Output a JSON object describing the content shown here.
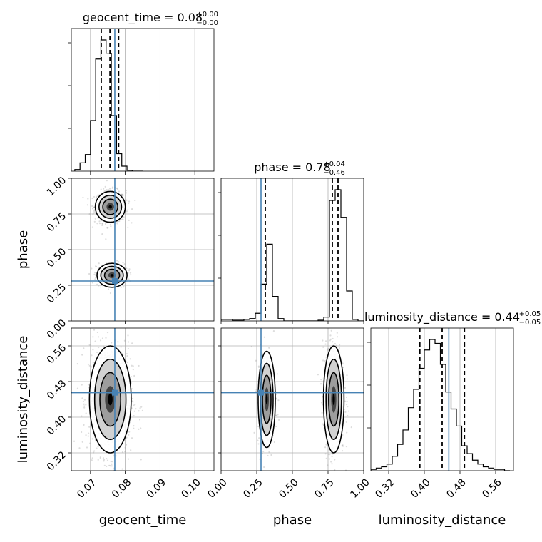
{
  "chart_data": {
    "type": "corner",
    "parameters": [
      "geocent_time",
      "phase",
      "luminosity_distance"
    ],
    "truths": {
      "geocent_time": 0.077,
      "phase": 0.28,
      "luminosity_distance": 0.455
    },
    "ranges": {
      "geocent_time": [
        0.0645,
        0.1055
      ],
      "phase": [
        0.0,
        1.0
      ],
      "luminosity_distance": [
        0.28,
        0.6
      ]
    },
    "ticks": {
      "geocent_time": [
        "0.07",
        "0.08",
        "0.09",
        "0.10"
      ],
      "phase": [
        "0.00",
        "0.25",
        "0.50",
        "0.75",
        "1.00"
      ],
      "luminosity_distance": [
        "0.32",
        "0.40",
        "0.48",
        "0.56"
      ]
    },
    "titles": [
      {
        "param": "geocent_time",
        "prefix": "geocent_time = 0.08",
        "upper": "+0.00",
        "lower": "−0.00"
      },
      {
        "param": "phase",
        "prefix": "phase = 0.78",
        "upper": "+0.04",
        "lower": "−0.46"
      },
      {
        "param": "luminosity_distance",
        "prefix": "luminosity_distance = 0.44",
        "upper": "+0.05",
        "lower": "−0.05"
      }
    ],
    "quantiles": {
      "geocent_time": [
        0.0731,
        0.0756,
        0.0781
      ],
      "phase": [
        0.31,
        0.78,
        0.82
      ],
      "luminosity_distance": [
        0.39,
        0.44,
        0.49
      ]
    },
    "histograms": {
      "geocent_time": {
        "edges": [
          0.0655,
          0.067,
          0.0685,
          0.07,
          0.0715,
          0.073,
          0.0745,
          0.076,
          0.0775,
          0.079,
          0.0805,
          0.082,
          0.0835,
          0.085
        ],
        "counts": [
          2,
          10,
          20,
          61,
          135,
          158,
          142,
          67,
          21,
          6,
          1,
          0,
          0
        ]
      },
      "phase": {
        "edges": [
          0.0,
          0.04,
          0.08,
          0.12,
          0.16,
          0.2,
          0.24,
          0.28,
          0.32,
          0.36,
          0.4,
          0.44,
          0.48,
          0.52,
          0.56,
          0.6,
          0.64,
          0.68,
          0.72,
          0.76,
          0.8,
          0.84,
          0.88,
          0.92,
          0.96,
          1.0
        ],
        "counts": [
          2,
          2,
          1,
          1,
          2,
          3,
          10,
          48,
          100,
          32,
          3,
          0,
          0,
          0,
          0,
          0,
          0,
          1,
          5,
          157,
          171,
          135,
          39,
          2,
          0
        ]
      },
      "luminosity_distance": {
        "edges": [
          0.28,
          0.292,
          0.304,
          0.316,
          0.328,
          0.34,
          0.352,
          0.364,
          0.376,
          0.388,
          0.4,
          0.412,
          0.424,
          0.436,
          0.448,
          0.46,
          0.472,
          0.484,
          0.496,
          0.508,
          0.52,
          0.532,
          0.544,
          0.556,
          0.568,
          0.58,
          0.592
        ],
        "counts": [
          1,
          2,
          3,
          5,
          11,
          20,
          31,
          48,
          62,
          78,
          92,
          100,
          97,
          81,
          60,
          47,
          34,
          19,
          13,
          8,
          5,
          3,
          2,
          1,
          1,
          0
        ]
      }
    },
    "hist2d": [
      {
        "x": "geocent_time",
        "y": "phase",
        "modes": [
          {
            "cx": 0.0757,
            "cy": 0.8,
            "sx": 0.0018,
            "sy": 0.045,
            "w": 0.65
          },
          {
            "cx": 0.0762,
            "cy": 0.32,
            "sx": 0.0018,
            "sy": 0.035,
            "w": 0.35
          }
        ]
      },
      {
        "x": "geocent_time",
        "y": "luminosity_distance",
        "modes": [
          {
            "cx": 0.0757,
            "cy": 0.44,
            "sx": 0.0025,
            "sy": 0.05,
            "w": 1.0
          }
        ]
      },
      {
        "x": "phase",
        "y": "luminosity_distance",
        "modes": [
          {
            "cx": 0.32,
            "cy": 0.44,
            "sx": 0.025,
            "sy": 0.045,
            "w": 0.35
          },
          {
            "cx": 0.79,
            "cy": 0.44,
            "sx": 0.03,
            "sy": 0.05,
            "w": 0.65
          }
        ]
      }
    ],
    "grid": true
  }
}
